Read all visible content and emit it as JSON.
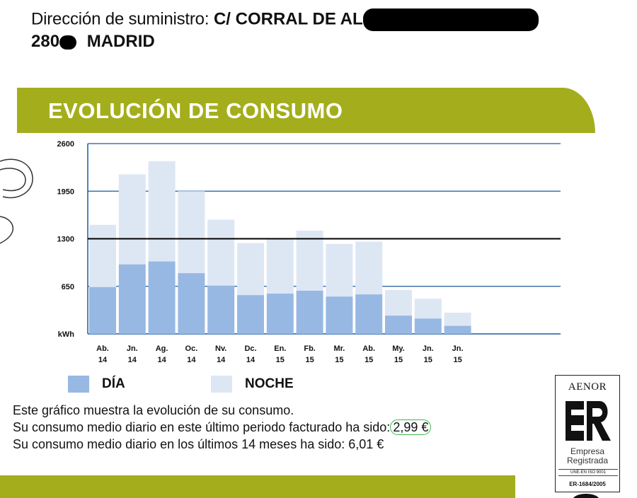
{
  "header": {
    "supply_label": "Dirección de suministro:",
    "street": "C/ CORRAL DE AL",
    "postcode_prefix": "280",
    "city": "MADRID"
  },
  "section": {
    "title": "EVOLUCIÓN DE CONSUMO"
  },
  "colors": {
    "brand_green": "#a4ae1c",
    "dia": "#97b8e3",
    "noche": "#dde7f4",
    "grid": "#1a5aa0",
    "average_line": "#000000",
    "highlight": "#3cb84a"
  },
  "chart_data": {
    "type": "bar",
    "stacked": true,
    "unit_label": "kWh",
    "ylim": [
      0,
      2600
    ],
    "yticks": [
      650,
      1300,
      1950,
      2600
    ],
    "average_line_value": 1300,
    "categories": [
      [
        "Ab.",
        "14"
      ],
      [
        "Jn.",
        "14"
      ],
      [
        "Ag.",
        "14"
      ],
      [
        "Oc.",
        "14"
      ],
      [
        "Nv.",
        "14"
      ],
      [
        "Dc.",
        "14"
      ],
      [
        "En.",
        "15"
      ],
      [
        "Fb.",
        "15"
      ],
      [
        "Mr.",
        "15"
      ],
      [
        "Ab.",
        "15"
      ],
      [
        "My.",
        "15"
      ],
      [
        "Jn.",
        "15"
      ],
      [
        "Jn.",
        "15"
      ]
    ],
    "series": [
      {
        "name": "DÍA",
        "values": [
          640,
          950,
          990,
          830,
          660,
          530,
          550,
          590,
          510,
          540,
          250,
          210,
          110
        ]
      },
      {
        "name": "NOCHE",
        "values": [
          850,
          1230,
          1370,
          1120,
          900,
          710,
          740,
          820,
          720,
          720,
          350,
          270,
          180
        ]
      }
    ],
    "legend": [
      {
        "label": "DÍA"
      },
      {
        "label": "NOCHE"
      }
    ]
  },
  "info": {
    "line1": "Este gráfico muestra la evolución de su consumo.",
    "line2_text": "Su consumo medio diario en este último periodo facturado ha sido:",
    "line2_value": "2,99 €",
    "line3": "Su consumo medio diario en los últimos 14 meses ha sido: 6,01 €"
  },
  "certification": {
    "brand": "AENOR",
    "mark": "ER",
    "line1": "Empresa",
    "line2": "Registrada",
    "standard": "UNE-EN ISO 9001",
    "code": "ER-1684/2005"
  }
}
